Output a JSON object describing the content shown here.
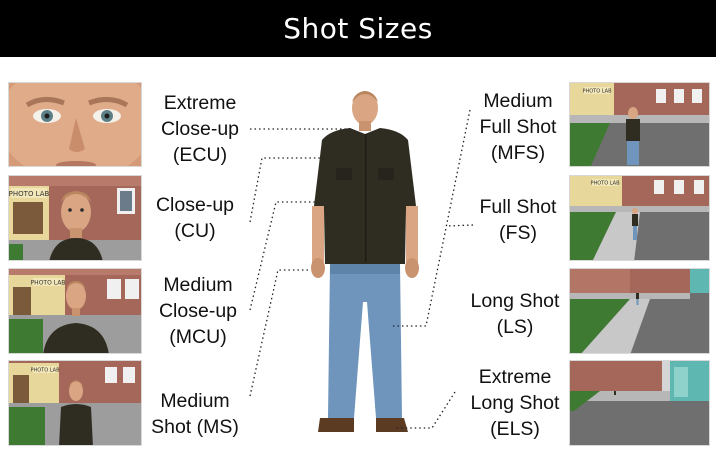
{
  "title": "Shot Sizes",
  "colors": {
    "title_bg": "#000000",
    "title_text": "#ffffff",
    "shirt": "#2f2c22",
    "jeans": "#6f95bd",
    "skin": "#d9a582",
    "brick": "#a5675a",
    "road": "#6f6f6f",
    "grass": "#4d8a3a"
  },
  "shots": [
    {
      "id": "ecu",
      "lines": [
        "Extreme",
        "Close-up",
        "(ECU)"
      ]
    },
    {
      "id": "cu",
      "lines": [
        "Close-up",
        "(CU)"
      ]
    },
    {
      "id": "mcu",
      "lines": [
        "Medium",
        "Close-up",
        "(MCU)"
      ]
    },
    {
      "id": "ms",
      "lines": [
        "Medium",
        "Shot (MS)"
      ]
    },
    {
      "id": "mfs",
      "lines": [
        "Medium",
        "Full Shot",
        "(MFS)"
      ]
    },
    {
      "id": "fs",
      "lines": [
        "Full Shot",
        "(FS)"
      ]
    },
    {
      "id": "ls",
      "lines": [
        "Long Shot",
        "(LS)"
      ]
    },
    {
      "id": "els",
      "lines": [
        "Extreme",
        "Long Shot",
        "(ELS)"
      ]
    }
  ],
  "sign_text": "PHOTO LAB"
}
